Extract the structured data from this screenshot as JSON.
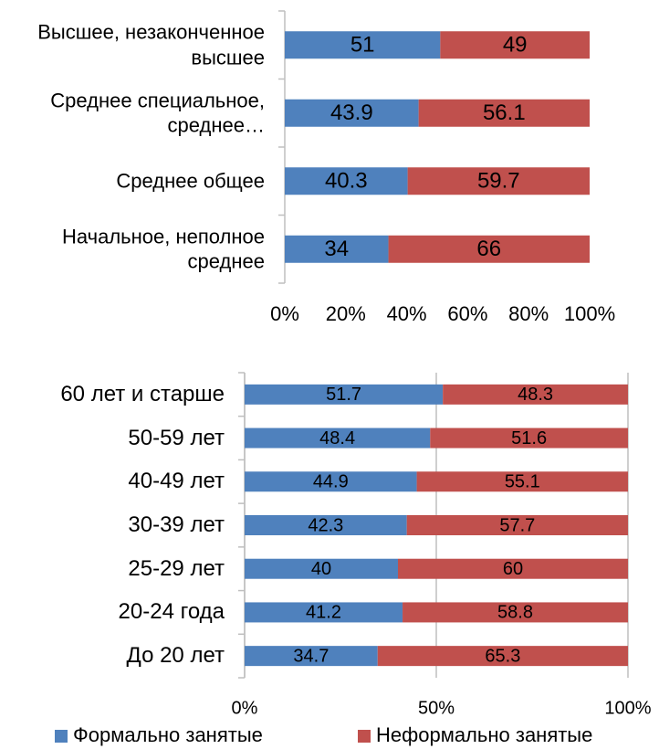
{
  "chart_data": [
    {
      "type": "stacked-bar-horizontal",
      "categories": [
        "Высшее, незаконченное высшее",
        "Среднее специальное, среднее…",
        "Среднее общее",
        "Начальное, неполное среднее"
      ],
      "series": [
        {
          "color": "#4f81bd",
          "values": [
            51,
            43.9,
            40.3,
            34
          ]
        },
        {
          "color": "#c0504d",
          "values": [
            49,
            56.1,
            59.7,
            66
          ]
        }
      ],
      "xlim": [
        0,
        100
      ],
      "xticks": [
        {
          "value": 0,
          "label": "0%"
        },
        {
          "value": 20,
          "label": "20%"
        },
        {
          "value": 40,
          "label": "40%"
        },
        {
          "value": 60,
          "label": "60%"
        },
        {
          "value": 80,
          "label": "80%"
        },
        {
          "value": 100,
          "label": "100%"
        }
      ],
      "grid": false
    },
    {
      "type": "stacked-bar-horizontal",
      "categories": [
        "60 лет и старше",
        "50-59 лет",
        "40-49 лет",
        "30-39 лет",
        "25-29 лет",
        "20-24 года",
        "До 20 лет"
      ],
      "series": [
        {
          "name": "Формально занятые",
          "color": "#4f81bd",
          "values": [
            51.7,
            48.4,
            44.9,
            42.3,
            40,
            41.2,
            34.7
          ]
        },
        {
          "name": "Неформально занятые",
          "color": "#c0504d",
          "values": [
            48.3,
            51.6,
            55.1,
            57.7,
            60,
            58.8,
            65.3
          ]
        }
      ],
      "xlim": [
        0,
        100
      ],
      "xticks": [
        {
          "value": 0,
          "label": "0%"
        },
        {
          "value": 50,
          "label": "50%"
        },
        {
          "value": 100,
          "label": "100%"
        }
      ],
      "grid": true,
      "legend": "bottom"
    }
  ]
}
